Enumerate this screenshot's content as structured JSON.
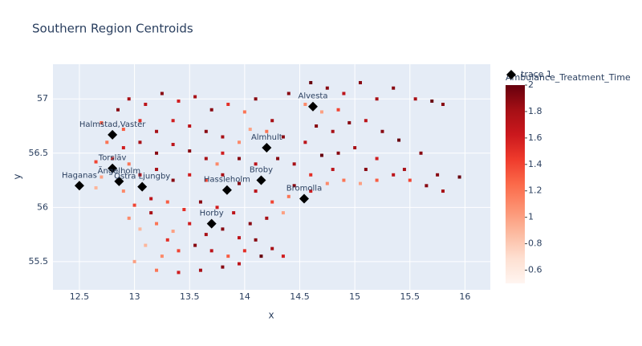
{
  "chart_data": {
    "type": "scatter",
    "title": "Southern Region Centroids",
    "x_label": "x",
    "y_label": "y",
    "xlim": [
      12.26,
      16.23
    ],
    "ylim": [
      55.24,
      57.32
    ],
    "xticks": [
      12.5,
      13,
      13.5,
      14,
      14.5,
      15,
      15.5,
      16
    ],
    "yticks": [
      55.5,
      56,
      56.5,
      57
    ],
    "grid": true,
    "points": {
      "x": [
        12.7,
        12.85,
        12.95,
        13.1,
        13.25,
        13.4,
        13.55,
        13.7,
        13.85,
        14.0,
        14.1,
        14.25,
        14.4,
        14.6,
        14.75,
        14.9,
        15.05,
        15.2,
        15.35,
        15.55,
        15.7,
        15.8,
        14.55,
        14.7,
        14.85,
        14.65,
        14.8,
        14.95,
        15.1,
        15.25,
        15.4,
        15.0,
        14.85,
        14.7,
        15.2,
        15.6,
        14.55,
        14.35,
        14.2,
        14.05,
        13.95,
        13.8,
        13.65,
        13.5,
        13.35,
        13.2,
        13.05,
        12.9,
        12.75,
        12.9,
        13.05,
        13.2,
        13.35,
        13.5,
        13.65,
        13.8,
        13.95,
        14.1,
        14.3,
        14.45,
        14.6,
        14.75,
        14.9,
        15.05,
        15.2,
        15.35,
        15.5,
        15.65,
        15.8,
        15.95,
        15.75,
        15.45,
        15.1,
        14.8,
        12.65,
        12.8,
        12.95,
        12.7,
        12.65,
        12.9,
        13.05,
        13.2,
        13.35,
        13.5,
        13.65,
        13.8,
        13.95,
        14.1,
        14.25,
        14.4,
        14.35,
        14.2,
        14.05,
        13.9,
        13.75,
        13.6,
        13.45,
        13.3,
        13.15,
        13.0,
        12.95,
        13.05,
        13.2,
        13.35,
        13.5,
        13.65,
        13.8,
        13.95,
        14.1,
        14.25,
        14.35,
        14.15,
        14.0,
        13.85,
        13.7,
        13.55,
        13.4,
        13.25,
        13.1,
        13.0,
        13.2,
        13.4,
        13.6,
        13.8,
        13.95,
        13.3,
        13.15,
        14.45,
        14.6,
        13.75
      ],
      "y": [
        56.78,
        56.9,
        57.0,
        56.95,
        57.05,
        56.98,
        57.02,
        56.9,
        56.95,
        56.88,
        57.0,
        56.8,
        57.05,
        57.15,
        57.1,
        57.05,
        57.15,
        57.0,
        57.1,
        57.0,
        56.98,
        56.95,
        56.95,
        56.88,
        56.9,
        56.75,
        56.7,
        56.78,
        56.8,
        56.7,
        56.62,
        56.55,
        56.5,
        56.48,
        56.45,
        56.5,
        56.6,
        56.65,
        56.7,
        56.72,
        56.6,
        56.65,
        56.7,
        56.75,
        56.8,
        56.7,
        56.8,
        56.72,
        56.6,
        56.55,
        56.6,
        56.5,
        56.58,
        56.52,
        56.45,
        56.5,
        56.45,
        56.4,
        56.45,
        56.4,
        56.3,
        56.22,
        56.25,
        56.22,
        56.25,
        56.3,
        56.25,
        56.2,
        56.15,
        56.28,
        56.3,
        56.35,
        56.35,
        56.35,
        56.42,
        56.45,
        56.4,
        56.28,
        56.18,
        56.15,
        56.3,
        56.35,
        56.25,
        56.3,
        56.25,
        56.3,
        56.22,
        56.15,
        56.05,
        56.1,
        55.95,
        55.9,
        55.85,
        55.95,
        56.0,
        56.05,
        55.98,
        56.05,
        56.08,
        56.02,
        55.9,
        55.8,
        55.85,
        55.78,
        55.85,
        55.75,
        55.8,
        55.72,
        55.7,
        55.62,
        55.55,
        55.55,
        55.6,
        55.55,
        55.6,
        55.65,
        55.6,
        55.55,
        55.65,
        55.5,
        55.42,
        55.4,
        55.42,
        55.45,
        55.48,
        55.7,
        55.95,
        56.2,
        56.15,
        56.4
      ],
      "values": [
        1.3,
        1.9,
        1.8,
        1.7,
        1.9,
        1.6,
        1.8,
        1.9,
        1.5,
        1.2,
        1.9,
        1.8,
        1.9,
        2.0,
        1.9,
        1.7,
        1.9,
        1.8,
        1.9,
        1.8,
        2.0,
        1.9,
        1.1,
        1.0,
        1.4,
        1.9,
        1.8,
        1.9,
        1.7,
        1.9,
        2.0,
        1.8,
        1.9,
        2.0,
        1.6,
        1.9,
        1.7,
        1.9,
        1.2,
        1.0,
        1.1,
        1.8,
        1.9,
        1.7,
        1.6,
        1.8,
        1.5,
        1.3,
        1.2,
        1.6,
        1.8,
        1.9,
        1.7,
        1.9,
        1.8,
        1.6,
        1.9,
        1.7,
        1.9,
        1.8,
        1.5,
        1.1,
        1.2,
        1.0,
        1.3,
        1.7,
        1.4,
        1.9,
        1.8,
        2.0,
        1.9,
        1.8,
        1.9,
        1.7,
        1.4,
        1.5,
        1.2,
        1.0,
        0.9,
        1.1,
        1.7,
        1.8,
        1.9,
        1.6,
        1.4,
        1.8,
        1.9,
        1.7,
        1.4,
        1.2,
        1.0,
        1.8,
        1.9,
        1.7,
        1.6,
        1.9,
        1.5,
        1.3,
        1.7,
        1.4,
        1.1,
        0.9,
        1.2,
        1.0,
        1.6,
        1.8,
        1.9,
        1.7,
        1.9,
        1.8,
        1.6,
        2.0,
        1.5,
        1.3,
        1.7,
        1.9,
        1.4,
        1.1,
        0.9,
        1.0,
        1.2,
        1.6,
        1.8,
        1.9,
        1.7,
        1.5,
        1.8,
        1.9,
        1.6,
        1.1
      ]
    },
    "colorbar": {
      "title": "Ambulance_Treatment_Time",
      "clim": [
        0.5,
        2
      ],
      "ticks": [
        0.6,
        0.8,
        1,
        1.2,
        1.4,
        1.6,
        1.8,
        2
      ],
      "colorscale": [
        "#fff5f0",
        "#fee0d2",
        "#fcbba1",
        "#fc9272",
        "#fb6a4a",
        "#ef3b2c",
        "#cb181d",
        "#a50f15",
        "#67000d"
      ]
    },
    "centroids": {
      "name": "trace 1",
      "color": "#000000",
      "labels": [
        "Halmstad,Vaster",
        "Haganas",
        "Torsläv",
        "Ängelholm",
        "Östra Ljungby",
        "Horby",
        "Hassleholm",
        "Broby",
        "Almhult",
        "Bromolla",
        "Alvesta"
      ],
      "x": [
        12.8,
        12.5,
        12.8,
        12.86,
        13.07,
        13.7,
        13.84,
        14.15,
        14.2,
        14.54,
        14.62
      ],
      "y": [
        56.67,
        56.2,
        56.36,
        56.24,
        56.19,
        55.85,
        56.16,
        56.25,
        56.55,
        56.08,
        56.93
      ]
    }
  }
}
